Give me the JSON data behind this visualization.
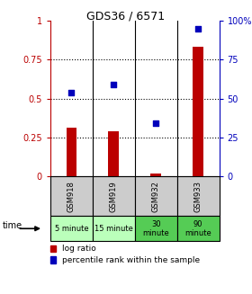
{
  "title": "GDS36 / 6571",
  "samples": [
    "GSM918",
    "GSM919",
    "GSM932",
    "GSM933"
  ],
  "time_labels": [
    "5 minute",
    "15 minute",
    "30\nminute",
    "90\nminute"
  ],
  "time_bg_colors": [
    "#bbffbb",
    "#bbffbb",
    "#55cc55",
    "#55cc55"
  ],
  "log_ratio": [
    0.31,
    0.29,
    0.02,
    0.83
  ],
  "percentile_rank": [
    0.54,
    0.59,
    0.34,
    0.95
  ],
  "bar_color": "#bb0000",
  "dot_color": "#0000bb",
  "ylim": [
    0,
    1
  ],
  "yticks": [
    0,
    0.25,
    0.5,
    0.75,
    1.0
  ],
  "ytick_labels_left": [
    "0",
    "0.25",
    "0.5",
    "0.75",
    "1"
  ],
  "ytick_labels_right": [
    "0",
    "25",
    "50",
    "75",
    "100%"
  ],
  "bar_width": 0.25,
  "sample_bg_color": "#cccccc",
  "legend_bar_label": "log ratio",
  "legend_dot_label": "percentile rank within the sample",
  "time_row_label": "time",
  "title_fontsize": 9,
  "tick_fontsize": 7,
  "sample_fontsize": 6,
  "time_fontsize": 6
}
